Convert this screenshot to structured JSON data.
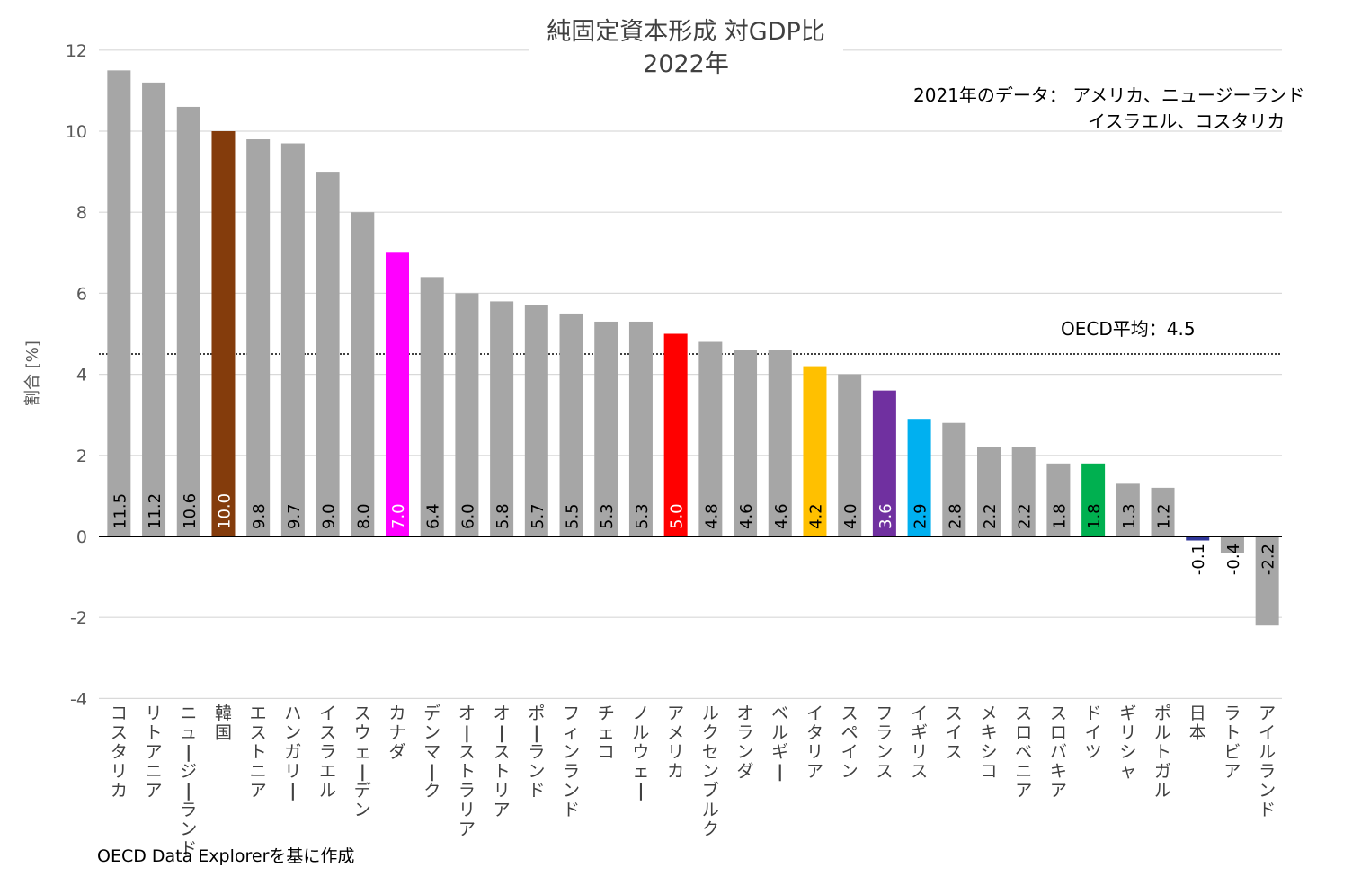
{
  "title": {
    "line1": "純固定資本形成 対GDP比",
    "line2": "2022年"
  },
  "note": {
    "line1": "2021年のデータ： アメリカ、ニュージーランド",
    "line2": "イスラエル、コスタリカ"
  },
  "average_label": "OECD平均：4.5",
  "source": "OECD Data Explorerを基に作成",
  "chart_data": {
    "type": "bar",
    "title": "純固定資本形成 対GDP比 2022年",
    "xlabel": "",
    "ylabel": "割合 [%]",
    "ylim": [
      -4,
      12
    ],
    "yticks": [
      -4,
      -2,
      0,
      2,
      4,
      6,
      8,
      10,
      12
    ],
    "ytick_labels": [
      "-4",
      "-2",
      "0",
      "2",
      "4",
      "6",
      "8",
      "10",
      "12"
    ],
    "grid": true,
    "reference_line": {
      "value": 4.5,
      "label": "OECD平均：4.5",
      "style": "dotted"
    },
    "categories": [
      "コスタリカ",
      "リトアニア",
      "ニュージーランド",
      "韓国",
      "エストニア",
      "ハンガリー",
      "イスラエル",
      "スウェーデン",
      "カナダ",
      "デンマーク",
      "オーストラリア",
      "オーストリア",
      "ポーランド",
      "フィンランド",
      "チェコ",
      "ノルウェー",
      "アメリカ",
      "ルクセンブルク",
      "オランダ",
      "ベルギー",
      "イタリア",
      "スペイン",
      "フランス",
      "イギリス",
      "スイス",
      "メキシコ",
      "スロベニア",
      "スロバキア",
      "ドイツ",
      "ギリシャ",
      "ポルトガル",
      "日本",
      "ラトビア",
      "アイルランド"
    ],
    "values": [
      11.5,
      11.2,
      10.6,
      10.0,
      9.8,
      9.7,
      9.0,
      8.0,
      7.0,
      6.4,
      6.0,
      5.8,
      5.7,
      5.5,
      5.3,
      5.3,
      5.0,
      4.8,
      4.6,
      4.6,
      4.2,
      4.0,
      3.6,
      2.9,
      2.8,
      2.2,
      2.2,
      1.8,
      1.8,
      1.3,
      1.2,
      -0.1,
      -0.4,
      -2.2
    ],
    "value_labels": [
      "11.5",
      "11.2",
      "10.6",
      "10.0",
      "9.8",
      "9.7",
      "9.0",
      "8.0",
      "7.0",
      "6.4",
      "6.0",
      "5.8",
      "5.7",
      "5.5",
      "5.3",
      "5.3",
      "5.0",
      "4.8",
      "4.6",
      "4.6",
      "4.2",
      "4.0",
      "3.6",
      "2.9",
      "2.8",
      "2.2",
      "2.2",
      "1.8",
      "1.8",
      "1.3",
      "1.2",
      "-0.1",
      "-0.4",
      "-2.2"
    ],
    "colors": [
      "#a6a6a6",
      "#a6a6a6",
      "#a6a6a6",
      "#843c0c",
      "#a6a6a6",
      "#a6a6a6",
      "#a6a6a6",
      "#a6a6a6",
      "#ff00ff",
      "#a6a6a6",
      "#a6a6a6",
      "#a6a6a6",
      "#a6a6a6",
      "#a6a6a6",
      "#a6a6a6",
      "#a6a6a6",
      "#ff0000",
      "#a6a6a6",
      "#a6a6a6",
      "#a6a6a6",
      "#ffc000",
      "#a6a6a6",
      "#7030a0",
      "#00b0f0",
      "#a6a6a6",
      "#a6a6a6",
      "#a6a6a6",
      "#a6a6a6",
      "#00b050",
      "#a6a6a6",
      "#a6a6a6",
      "#2f3699",
      "#a6a6a6",
      "#a6a6a6"
    ],
    "label_colors": [
      "#000000",
      "#000000",
      "#000000",
      "#ffffff",
      "#000000",
      "#000000",
      "#000000",
      "#000000",
      "#ffffff",
      "#000000",
      "#000000",
      "#000000",
      "#000000",
      "#000000",
      "#000000",
      "#000000",
      "#ffffff",
      "#000000",
      "#000000",
      "#000000",
      "#000000",
      "#000000",
      "#ffffff",
      "#000000",
      "#000000",
      "#000000",
      "#000000",
      "#000000",
      "#000000",
      "#000000",
      "#000000",
      "#000000",
      "#000000",
      "#000000"
    ]
  }
}
